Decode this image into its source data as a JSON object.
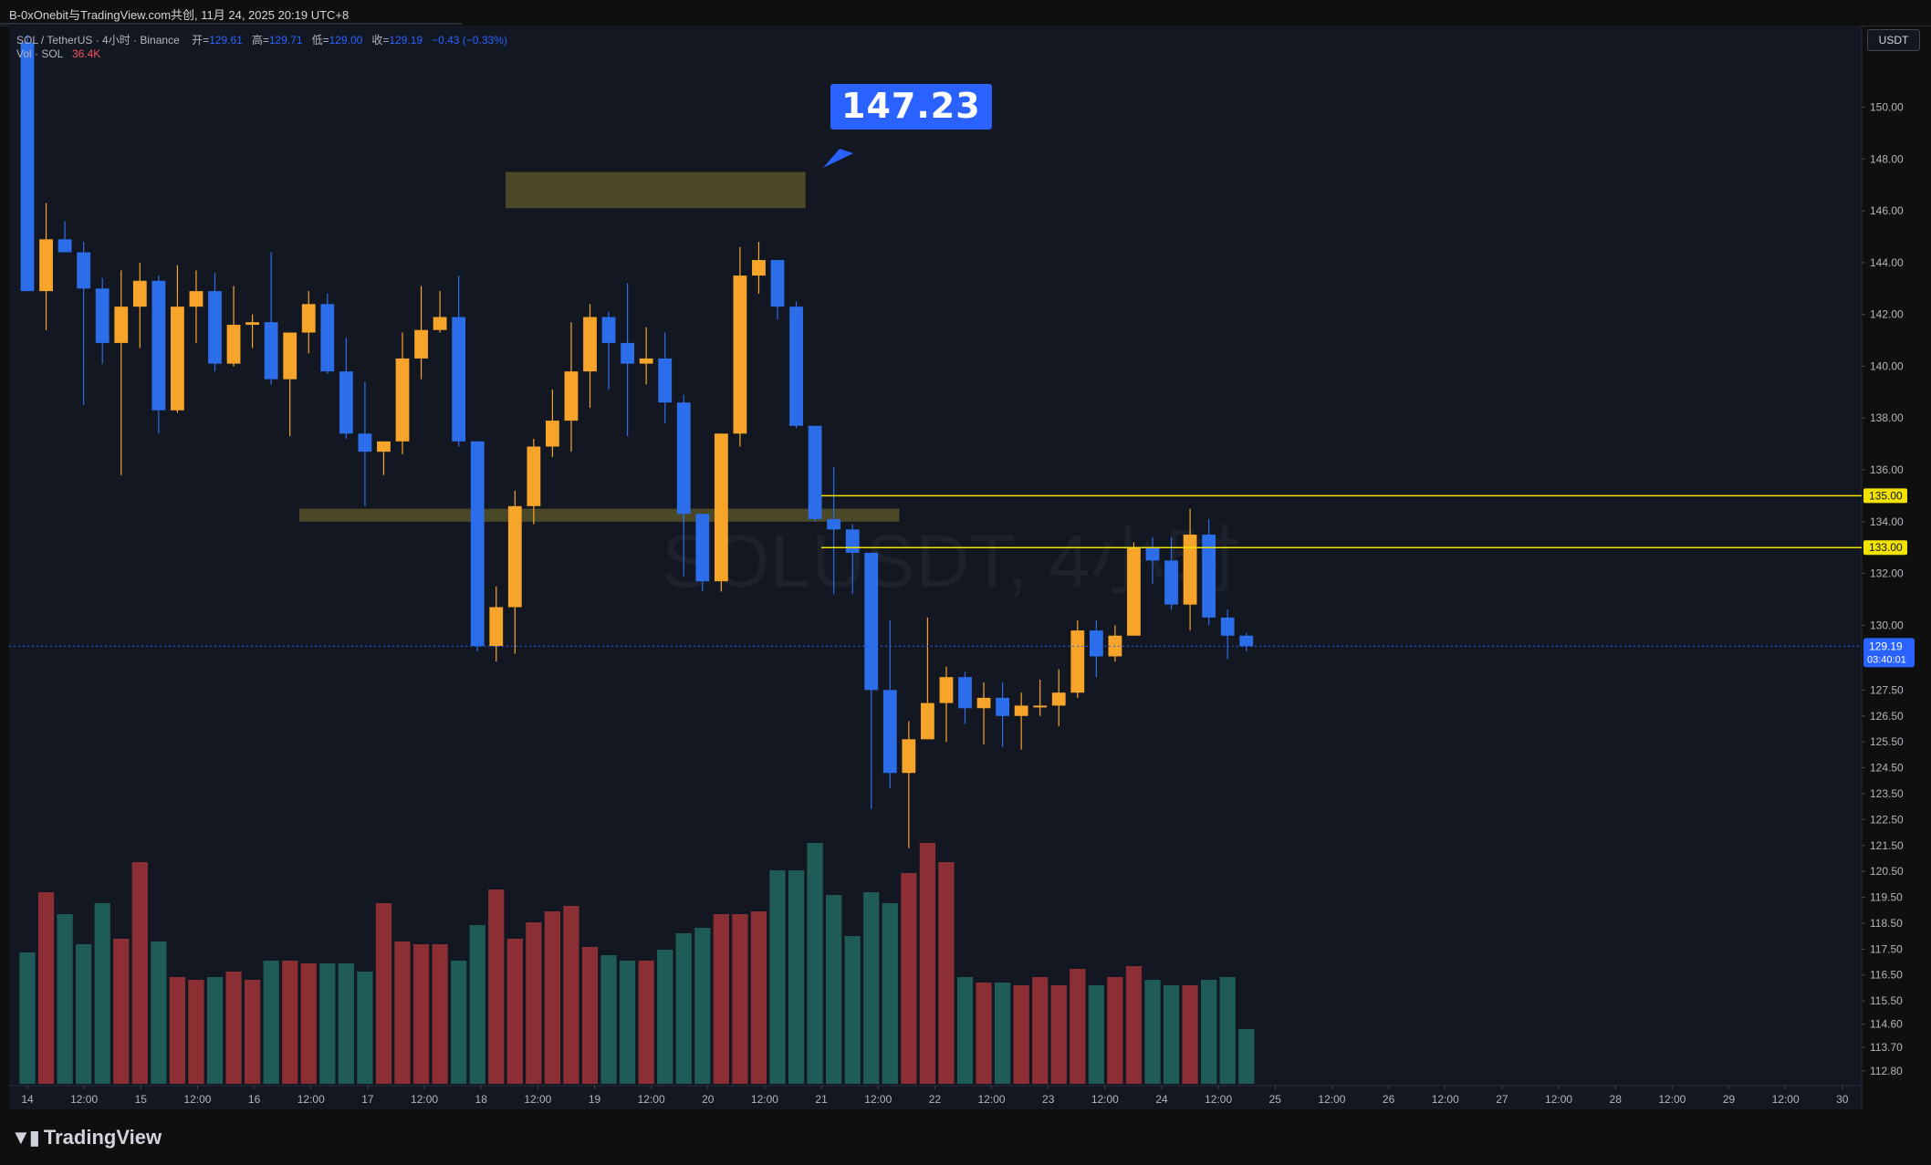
{
  "window": {
    "title": "B-0xOnebit与TradingView.com共创, 11月 24, 2025 20:19 UTC+8"
  },
  "legend": {
    "symbol": "SOL / TetherUS · 4小时 · Binance",
    "open_label": "开=",
    "open": "129.61",
    "high_label": "高=",
    "high": "129.71",
    "low_label": "低=",
    "low": "129.00",
    "close_label": "收=",
    "close": "129.19",
    "change": "−0.43 (−0.33%)",
    "vol_label": "Vol · SOL",
    "vol_value": "36.4K"
  },
  "watermark": "SOLUSDT, 4小时",
  "callout": {
    "value": "147.23"
  },
  "currency": "USDT",
  "footer": {
    "brand": "TradingView"
  },
  "colors": {
    "background": "#131722",
    "up": "#f7a52a",
    "down": "#2c6ee9",
    "vol_up": "#1f5c58",
    "vol_down": "#8b2f35",
    "level_line": "#f2e200",
    "zone": "#5e5a2a",
    "last_price": "#2962ff"
  },
  "chart_data": {
    "type": "candlestick",
    "timeframe": "4h",
    "ylim": [
      112.3,
      152.8
    ],
    "price_ticks": [
      "150.00",
      "148.00",
      "146.00",
      "144.00",
      "142.00",
      "140.00",
      "138.00",
      "136.00",
      "134.00",
      "132.00",
      "130.00",
      "129.19",
      "127.50",
      "126.50",
      "125.50",
      "124.50",
      "123.50",
      "122.50",
      "121.50",
      "120.50",
      "119.50",
      "118.50",
      "117.50",
      "116.50",
      "115.50",
      "114.60",
      "113.70",
      "112.80"
    ],
    "time_ticks": [
      "14",
      "12:00",
      "15",
      "12:00",
      "16",
      "12:00",
      "17",
      "12:00",
      "18",
      "12:00",
      "19",
      "12:00",
      "20",
      "12:00",
      "21",
      "12:00",
      "22",
      "12:00",
      "23",
      "12:00",
      "24",
      "12:00",
      "25",
      "12:00",
      "26",
      "12:00",
      "27",
      "12:00",
      "28",
      "12:00",
      "29",
      "12:00",
      "30"
    ],
    "horizontal_levels": [
      {
        "price": 135.0,
        "label": "135.00"
      },
      {
        "price": 133.0,
        "label": "133.00"
      }
    ],
    "last_price": {
      "value": "129.19",
      "countdown": "03:40:01"
    },
    "zones": [
      {
        "from_bar": 26,
        "to_bar": 42,
        "top": 147.5,
        "bottom": 146.1
      },
      {
        "from_bar": 15,
        "to_bar": 47,
        "top": 134.5,
        "bottom": 134.0
      }
    ],
    "candles": [
      {
        "o": 152.5,
        "h": 152.8,
        "l": 142.9,
        "c": 142.9,
        "v": 0.48
      },
      {
        "o": 142.9,
        "h": 146.3,
        "l": 141.4,
        "c": 144.9,
        "v": 0.7
      },
      {
        "o": 144.9,
        "h": 145.6,
        "l": 144.5,
        "c": 144.4,
        "v": 0.62
      },
      {
        "o": 144.4,
        "h": 144.8,
        "l": 138.5,
        "c": 143.0,
        "v": 0.51
      },
      {
        "o": 143.0,
        "h": 143.4,
        "l": 140.1,
        "c": 140.9,
        "v": 0.66
      },
      {
        "o": 140.9,
        "h": 143.7,
        "l": 135.8,
        "c": 142.3,
        "v": 0.53
      },
      {
        "o": 142.3,
        "h": 144.0,
        "l": 140.7,
        "c": 143.3,
        "v": 0.81
      },
      {
        "o": 143.3,
        "h": 143.5,
        "l": 137.4,
        "c": 138.3,
        "v": 0.52
      },
      {
        "o": 138.3,
        "h": 143.9,
        "l": 138.2,
        "c": 142.3,
        "v": 0.39
      },
      {
        "o": 142.3,
        "h": 143.7,
        "l": 140.9,
        "c": 142.9,
        "v": 0.38
      },
      {
        "o": 142.9,
        "h": 143.6,
        "l": 139.8,
        "c": 140.1,
        "v": 0.39
      },
      {
        "o": 140.1,
        "h": 143.1,
        "l": 140.0,
        "c": 141.6,
        "v": 0.41
      },
      {
        "o": 141.6,
        "h": 142.0,
        "l": 140.7,
        "c": 141.7,
        "v": 0.38
      },
      {
        "o": 141.7,
        "h": 144.4,
        "l": 139.3,
        "c": 139.5,
        "v": 0.45
      },
      {
        "o": 139.5,
        "h": 141.2,
        "l": 137.3,
        "c": 141.3,
        "v": 0.45
      },
      {
        "o": 141.3,
        "h": 142.9,
        "l": 140.5,
        "c": 142.4,
        "v": 0.44
      },
      {
        "o": 142.4,
        "h": 142.8,
        "l": 139.7,
        "c": 139.8,
        "v": 0.44
      },
      {
        "o": 139.8,
        "h": 141.1,
        "l": 137.2,
        "c": 137.4,
        "v": 0.44
      },
      {
        "o": 137.4,
        "h": 139.4,
        "l": 134.6,
        "c": 136.7,
        "v": 0.41
      },
      {
        "o": 136.7,
        "h": 136.7,
        "l": 135.8,
        "c": 137.1,
        "v": 0.66
      },
      {
        "o": 137.1,
        "h": 141.3,
        "l": 136.6,
        "c": 140.3,
        "v": 0.52
      },
      {
        "o": 140.3,
        "h": 143.1,
        "l": 139.5,
        "c": 141.4,
        "v": 0.51
      },
      {
        "o": 141.4,
        "h": 142.9,
        "l": 141.3,
        "c": 141.9,
        "v": 0.51
      },
      {
        "o": 141.9,
        "h": 143.5,
        "l": 136.9,
        "c": 137.1,
        "v": 0.45
      },
      {
        "o": 137.1,
        "h": 137.1,
        "l": 129.0,
        "c": 129.2,
        "v": 0.58
      },
      {
        "o": 129.2,
        "h": 131.5,
        "l": 128.6,
        "c": 130.7,
        "v": 0.71
      },
      {
        "o": 130.7,
        "h": 135.2,
        "l": 128.9,
        "c": 134.6,
        "v": 0.53
      },
      {
        "o": 134.6,
        "h": 137.2,
        "l": 133.9,
        "c": 136.9,
        "v": 0.59
      },
      {
        "o": 136.9,
        "h": 139.1,
        "l": 136.5,
        "c": 137.9,
        "v": 0.63
      },
      {
        "o": 137.9,
        "h": 141.7,
        "l": 136.7,
        "c": 139.8,
        "v": 0.65
      },
      {
        "o": 139.8,
        "h": 142.4,
        "l": 138.4,
        "c": 141.9,
        "v": 0.5
      },
      {
        "o": 141.9,
        "h": 142.1,
        "l": 139.1,
        "c": 140.9,
        "v": 0.47
      },
      {
        "o": 140.9,
        "h": 143.2,
        "l": 137.3,
        "c": 140.1,
        "v": 0.45
      },
      {
        "o": 140.1,
        "h": 141.5,
        "l": 139.3,
        "c": 140.3,
        "v": 0.45
      },
      {
        "o": 140.3,
        "h": 141.3,
        "l": 137.8,
        "c": 138.6,
        "v": 0.49
      },
      {
        "o": 138.6,
        "h": 138.9,
        "l": 131.9,
        "c": 134.3,
        "v": 0.55
      },
      {
        "o": 134.3,
        "h": 134.2,
        "l": 131.3,
        "c": 131.7,
        "v": 0.57
      },
      {
        "o": 131.7,
        "h": 137.4,
        "l": 131.3,
        "c": 137.4,
        "v": 0.62
      },
      {
        "o": 137.4,
        "h": 144.6,
        "l": 136.9,
        "c": 143.5,
        "v": 0.62
      },
      {
        "o": 143.5,
        "h": 144.8,
        "l": 142.8,
        "c": 144.1,
        "v": 0.63
      },
      {
        "o": 144.1,
        "h": 144.0,
        "l": 141.8,
        "c": 142.3,
        "v": 0.78
      },
      {
        "o": 142.3,
        "h": 142.5,
        "l": 137.6,
        "c": 137.7,
        "v": 0.78
      },
      {
        "o": 137.7,
        "h": 137.7,
        "l": 134.0,
        "c": 134.1,
        "v": 0.88
      },
      {
        "o": 134.1,
        "h": 136.1,
        "l": 131.2,
        "c": 133.7,
        "v": 0.69
      },
      {
        "o": 133.7,
        "h": 133.9,
        "l": 131.2,
        "c": 132.8,
        "v": 0.54
      },
      {
        "o": 132.8,
        "h": 132.8,
        "l": 122.9,
        "c": 127.5,
        "v": 0.7
      },
      {
        "o": 127.5,
        "h": 130.2,
        "l": 123.7,
        "c": 124.3,
        "v": 0.66
      },
      {
        "o": 124.3,
        "h": 126.3,
        "l": 121.4,
        "c": 125.6,
        "v": 0.77
      },
      {
        "o": 125.6,
        "h": 130.3,
        "l": 125.6,
        "c": 127.0,
        "v": 0.88
      },
      {
        "o": 127.0,
        "h": 128.4,
        "l": 125.5,
        "c": 128.0,
        "v": 0.81
      },
      {
        "o": 128.0,
        "h": 128.2,
        "l": 126.2,
        "c": 126.8,
        "v": 0.39
      },
      {
        "o": 126.8,
        "h": 127.8,
        "l": 125.4,
        "c": 127.2,
        "v": 0.37
      },
      {
        "o": 127.2,
        "h": 127.8,
        "l": 125.3,
        "c": 126.5,
        "v": 0.37
      },
      {
        "o": 126.5,
        "h": 127.4,
        "l": 125.2,
        "c": 126.9,
        "v": 0.36
      },
      {
        "o": 126.9,
        "h": 127.9,
        "l": 126.5,
        "c": 126.9,
        "v": 0.39
      },
      {
        "o": 126.9,
        "h": 128.3,
        "l": 126.1,
        "c": 127.4,
        "v": 0.36
      },
      {
        "o": 127.4,
        "h": 130.2,
        "l": 127.2,
        "c": 129.8,
        "v": 0.42
      },
      {
        "o": 129.8,
        "h": 130.2,
        "l": 128.0,
        "c": 128.8,
        "v": 0.36
      },
      {
        "o": 128.8,
        "h": 130.0,
        "l": 128.6,
        "c": 129.6,
        "v": 0.39
      },
      {
        "o": 129.6,
        "h": 133.2,
        "l": 129.6,
        "c": 133.0,
        "v": 0.43
      },
      {
        "o": 133.0,
        "h": 133.4,
        "l": 131.6,
        "c": 132.5,
        "v": 0.38
      },
      {
        "o": 132.5,
        "h": 133.4,
        "l": 130.6,
        "c": 130.8,
        "v": 0.36
      },
      {
        "o": 130.8,
        "h": 134.5,
        "l": 129.8,
        "c": 133.5,
        "v": 0.36
      },
      {
        "o": 133.5,
        "h": 134.1,
        "l": 130.0,
        "c": 130.3,
        "v": 0.38
      },
      {
        "o": 130.3,
        "h": 130.6,
        "l": 128.7,
        "c": 129.6,
        "v": 0.39
      },
      {
        "o": 129.6,
        "h": 129.7,
        "l": 129.0,
        "c": 129.19,
        "v": 0.2
      }
    ]
  }
}
